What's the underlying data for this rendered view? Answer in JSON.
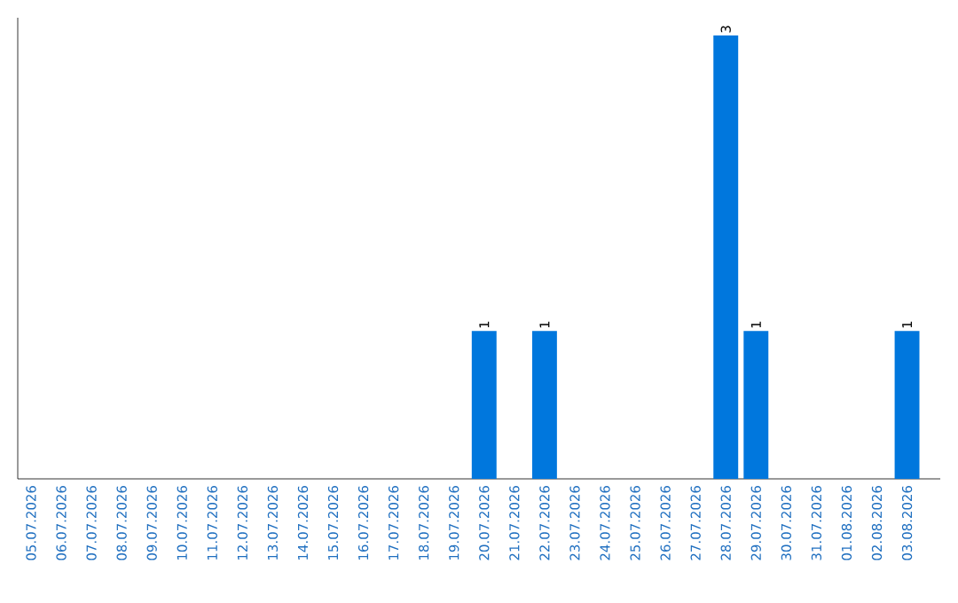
{
  "chart_data": {
    "type": "bar",
    "categories": [
      "05.07.2026",
      "06.07.2026",
      "07.07.2026",
      "08.07.2026",
      "09.07.2026",
      "10.07.2026",
      "11.07.2026",
      "12.07.2026",
      "13.07.2026",
      "14.07.2026",
      "15.07.2026",
      "16.07.2026",
      "17.07.2026",
      "18.07.2026",
      "19.07.2026",
      "20.07.2026",
      "21.07.2026",
      "22.07.2026",
      "23.07.2026",
      "24.07.2026",
      "25.07.2026",
      "26.07.2026",
      "27.07.2026",
      "28.07.2026",
      "29.07.2026",
      "30.07.2026",
      "31.07.2026",
      "01.08.2026",
      "02.08.2026",
      "03.08.2026"
    ],
    "values": [
      null,
      null,
      null,
      null,
      null,
      null,
      null,
      null,
      null,
      null,
      null,
      null,
      null,
      null,
      null,
      1,
      null,
      1,
      null,
      null,
      null,
      null,
      null,
      3,
      1,
      null,
      null,
      null,
      null,
      1
    ],
    "data_labels": true,
    "color": "#0077dd"
  }
}
